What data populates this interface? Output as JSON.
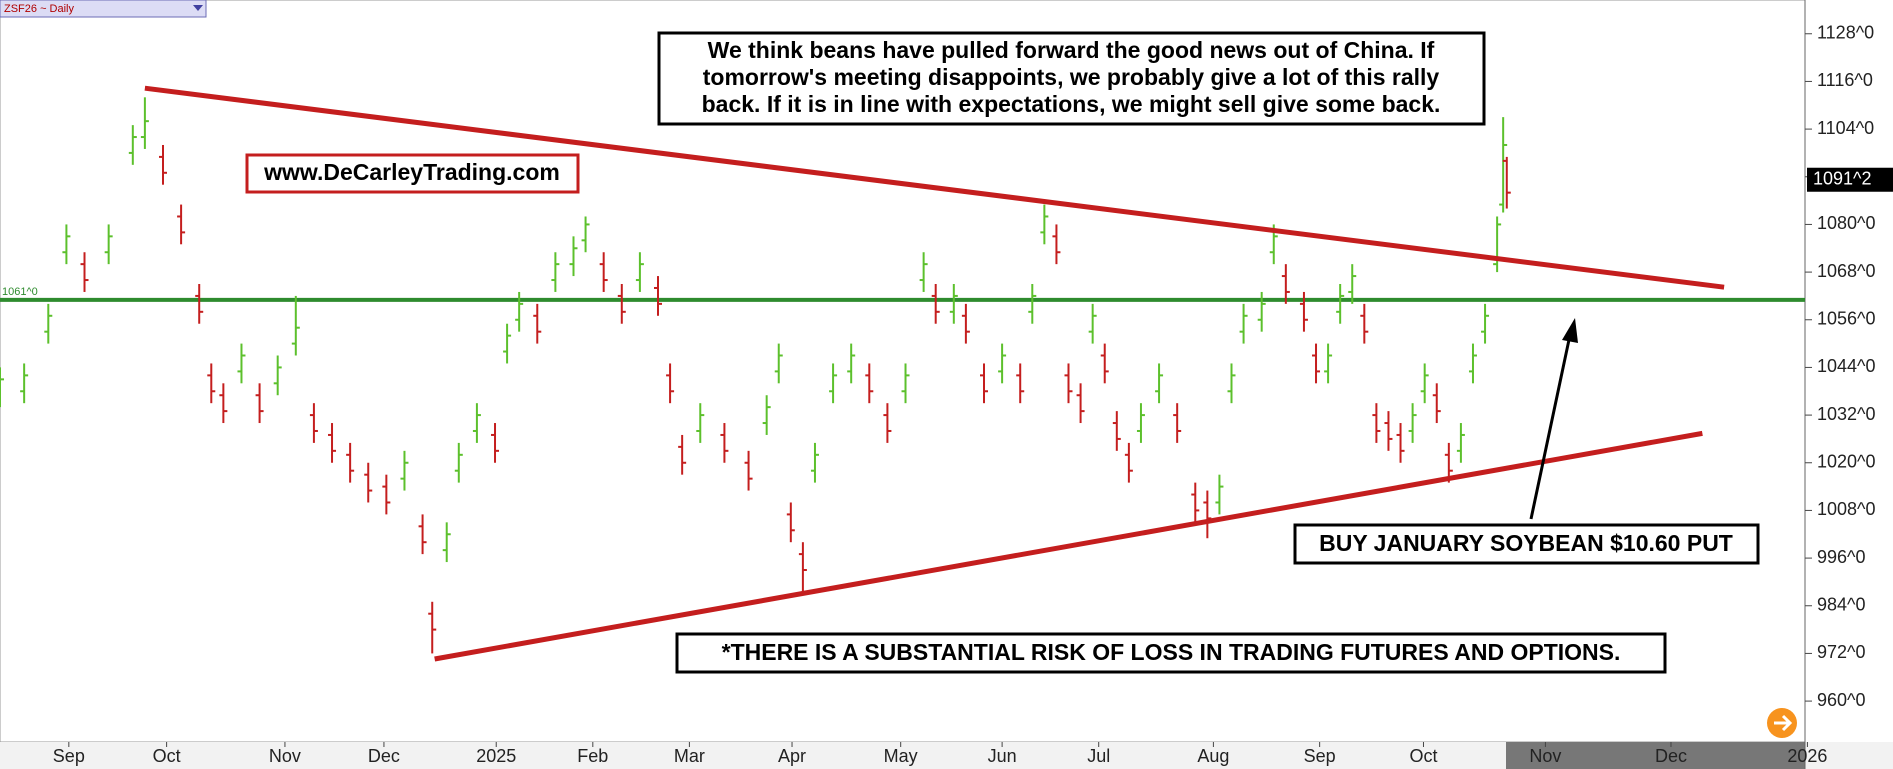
{
  "chart_data": {
    "type": "ohlc",
    "header": "ZSF26 ~ Daily",
    "xlim": [
      0,
      1495
    ],
    "ylim": [
      949.7,
      1136.5
    ],
    "xticks": [
      {
        "value": 57,
        "label": "Sep"
      },
      {
        "value": 138,
        "label": "Oct"
      },
      {
        "value": 236,
        "label": "Nov"
      },
      {
        "value": 318,
        "label": "Dec"
      },
      {
        "value": 411,
        "label": "2025"
      },
      {
        "value": 491,
        "label": "Feb"
      },
      {
        "value": 571,
        "label": "Mar"
      },
      {
        "value": 656,
        "label": "Apr"
      },
      {
        "value": 746,
        "label": "May"
      },
      {
        "value": 830,
        "label": "Jun"
      },
      {
        "value": 910,
        "label": "Jul"
      },
      {
        "value": 1005,
        "label": "Aug"
      },
      {
        "value": 1093,
        "label": "Sep"
      },
      {
        "value": 1179,
        "label": "Oct"
      },
      {
        "value": 1280,
        "label": "Nov"
      },
      {
        "value": 1384,
        "label": "Dec"
      },
      {
        "value": 1497,
        "label": "2026"
      }
    ],
    "yticks": [
      {
        "value": 1128,
        "label": "1128^0"
      },
      {
        "value": 1116,
        "label": "1116^0"
      },
      {
        "value": 1104,
        "label": "1104^0"
      },
      {
        "value": 1092,
        "label": "1092^0"
      },
      {
        "value": 1080,
        "label": "1080^0"
      },
      {
        "value": 1068,
        "label": "1068^0"
      },
      {
        "value": 1056,
        "label": "1056^0"
      },
      {
        "value": 1044,
        "label": "1044^0"
      },
      {
        "value": 1032,
        "label": "1032^0"
      },
      {
        "value": 1020,
        "label": "1020^0"
      },
      {
        "value": 1008,
        "label": "1008^0"
      },
      {
        "value": 996,
        "label": "996^0"
      },
      {
        "value": 984,
        "label": "984^0"
      },
      {
        "value": 972,
        "label": "972^0"
      },
      {
        "value": 960,
        "label": "960^0"
      }
    ],
    "up_color": "#5cc02c",
    "down_color": "#c41e1e",
    "bars": {
      "x": [
        0,
        20,
        40,
        55,
        70,
        90,
        110,
        120,
        135,
        150,
        165,
        175,
        185,
        200,
        215,
        230,
        245,
        260,
        275,
        290,
        305,
        320,
        335,
        350,
        358,
        370,
        380,
        395,
        410,
        420,
        430,
        445,
        460,
        475,
        485,
        500,
        515,
        530,
        545,
        555,
        565,
        580,
        600,
        620,
        635,
        645,
        655,
        665,
        675,
        690,
        705,
        720,
        735,
        750,
        765,
        775,
        790,
        800,
        815,
        830,
        845,
        855,
        865,
        875,
        885,
        895,
        905,
        915,
        925,
        935,
        945,
        960,
        975,
        990,
        1000,
        1010,
        1020,
        1030,
        1045,
        1055,
        1065,
        1080,
        1090,
        1100,
        1110,
        1120,
        1130,
        1140,
        1150,
        1160,
        1170,
        1180,
        1190,
        1200,
        1210,
        1220,
        1230,
        1240,
        1245,
        1248
      ],
      "open": [
        1037,
        1038,
        1053,
        1073,
        1070,
        1073,
        1098,
        1102,
        1097,
        1082,
        1062,
        1042,
        1037,
        1043,
        1037,
        1040,
        1050,
        1032,
        1027,
        1022,
        1017,
        1014,
        1016,
        1004,
        982,
        998,
        1018,
        1028,
        1027,
        1048,
        1056,
        1057,
        1066,
        1070,
        1076,
        1070,
        1062,
        1066,
        1064,
        1042,
        1024,
        1028,
        1027,
        1020,
        1030,
        1043,
        1007,
        997,
        1018,
        1038,
        1043,
        1042,
        1032,
        1038,
        1066,
        1062,
        1058,
        1057,
        1042,
        1043,
        1042,
        1058,
        1078,
        1077,
        1042,
        1037,
        1053,
        1047,
        1030,
        1022,
        1028,
        1038,
        1032,
        1012,
        1010,
        1010,
        1038,
        1053,
        1056,
        1073,
        1067,
        1060,
        1047,
        1043,
        1058,
        1063,
        1057,
        1032,
        1030,
        1027,
        1028,
        1038,
        1037,
        1022,
        1023,
        1043,
        1053,
        1070,
        1085,
        1096
      ],
      "high": [
        1044,
        1045,
        1060,
        1080,
        1073,
        1080,
        1105,
        1112,
        1100,
        1085,
        1065,
        1045,
        1040,
        1050,
        1040,
        1047,
        1062,
        1035,
        1030,
        1025,
        1020,
        1017,
        1023,
        1007,
        985,
        1005,
        1025,
        1035,
        1030,
        1055,
        1063,
        1060,
        1073,
        1077,
        1082,
        1073,
        1065,
        1073,
        1067,
        1045,
        1027,
        1035,
        1030,
        1023,
        1037,
        1050,
        1010,
        1000,
        1025,
        1045,
        1050,
        1045,
        1035,
        1045,
        1073,
        1065,
        1065,
        1060,
        1045,
        1050,
        1045,
        1065,
        1085,
        1080,
        1045,
        1040,
        1060,
        1050,
        1033,
        1025,
        1035,
        1045,
        1035,
        1015,
        1013,
        1017,
        1045,
        1060,
        1063,
        1080,
        1070,
        1063,
        1050,
        1050,
        1065,
        1070,
        1060,
        1035,
        1033,
        1030,
        1035,
        1045,
        1040,
        1025,
        1030,
        1050,
        1060,
        1082,
        1107,
        1097
      ],
      "low": [
        1034,
        1035,
        1050,
        1070,
        1063,
        1070,
        1095,
        1099,
        1090,
        1075,
        1055,
        1035,
        1030,
        1040,
        1030,
        1037,
        1047,
        1025,
        1020,
        1015,
        1010,
        1007,
        1013,
        997,
        972,
        995,
        1015,
        1025,
        1020,
        1045,
        1053,
        1050,
        1063,
        1067,
        1073,
        1063,
        1055,
        1063,
        1057,
        1035,
        1017,
        1025,
        1020,
        1013,
        1027,
        1040,
        1000,
        987,
        1015,
        1035,
        1040,
        1035,
        1025,
        1035,
        1063,
        1055,
        1055,
        1050,
        1035,
        1040,
        1035,
        1055,
        1075,
        1070,
        1035,
        1030,
        1050,
        1040,
        1023,
        1015,
        1025,
        1035,
        1025,
        1005,
        1001,
        1007,
        1035,
        1050,
        1053,
        1070,
        1060,
        1053,
        1040,
        1040,
        1055,
        1060,
        1050,
        1025,
        1023,
        1020,
        1025,
        1035,
        1030,
        1015,
        1020,
        1040,
        1050,
        1068,
        1083,
        1084
      ],
      "close": [
        1041,
        1042,
        1057,
        1077,
        1066,
        1077,
        1102,
        1106,
        1093,
        1078,
        1058,
        1038,
        1033,
        1047,
        1033,
        1044,
        1054,
        1028,
        1023,
        1018,
        1013,
        1010,
        1020,
        1000,
        978,
        1002,
        1022,
        1032,
        1023,
        1052,
        1060,
        1053,
        1070,
        1074,
        1080,
        1066,
        1058,
        1070,
        1060,
        1038,
        1020,
        1032,
        1023,
        1016,
        1034,
        1047,
        1003,
        993,
        1022,
        1042,
        1047,
        1038,
        1028,
        1042,
        1070,
        1058,
        1062,
        1053,
        1038,
        1047,
        1038,
        1062,
        1082,
        1073,
        1038,
        1033,
        1057,
        1043,
        1026,
        1018,
        1032,
        1042,
        1028,
        1008,
        1006,
        1014,
        1042,
        1057,
        1060,
        1077,
        1063,
        1056,
        1043,
        1047,
        1062,
        1067,
        1053,
        1028,
        1026,
        1023,
        1032,
        1042,
        1033,
        1018,
        1027,
        1047,
        1057,
        1080,
        1100,
        1088
      ]
    },
    "trendlines": [
      {
        "x": [
          120,
          1428
        ],
        "y": [
          1114.3,
          1064.2
        ],
        "color": "#c41e1e"
      },
      {
        "x": [
          360,
          1410
        ],
        "y": [
          970.6,
          1027.4
        ],
        "color": "#c41e1e"
      }
    ],
    "hline": {
      "value": 1061,
      "label": "1061^0",
      "color": "#2e8b2e"
    },
    "last_price": {
      "value": 1091.25,
      "label": "1091^2"
    },
    "annotations": {
      "comment": [
        "We think beans have pulled forward the good news out of China. If",
        "tomorrow's meeting disappoints, we probably give a lot of this rally",
        "back. If it is in line with expectations, we might sell give some back."
      ],
      "website": "www.DeCarleyTrading.com",
      "trade": "BUY JANUARY SOYBEAN $10.60 PUT",
      "disclaimer": "*THERE IS A SUBSTANTIAL RISK OF LOSS IN TRADING FUTURES AND OPTIONS."
    }
  }
}
